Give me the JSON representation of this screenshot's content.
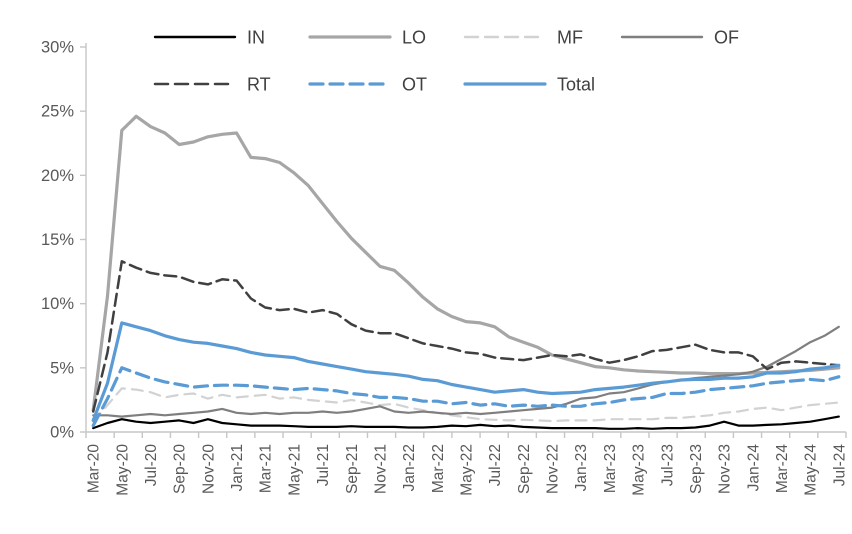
{
  "chart_data": {
    "type": "line",
    "title": "",
    "x_axis": {
      "start": "Mar-20",
      "end": "Jul-24",
      "interval": "monthly",
      "tick_labels": [
        "Mar-20",
        "May-20",
        "Jul-20",
        "Sep-20",
        "Nov-20",
        "Jan-21",
        "Mar-21",
        "May-21",
        "Jul-21",
        "Sep-21",
        "Nov-21",
        "Jan-22",
        "Mar-22",
        "May-22",
        "Jul-22",
        "Sep-22",
        "Nov-22",
        "Jan-23",
        "Mar-23",
        "May-23",
        "Jul-23",
        "Sep-23",
        "Nov-23",
        "Jan-24",
        "Mar-24",
        "May-24",
        "Jul-24"
      ]
    },
    "y_axis": {
      "min": 0,
      "max": 30,
      "tick_step": 5,
      "tick_labels": [
        "0%",
        "5%",
        "10%",
        "15%",
        "20%",
        "25%",
        "30%"
      ],
      "format": "percent"
    },
    "legend": {
      "position": "top",
      "rows": [
        [
          "IN",
          "LO",
          "MF",
          "OF"
        ],
        [
          "RT",
          "OT",
          "Total"
        ]
      ]
    },
    "grid": "off",
    "axis_color": "#C6C6C6",
    "tick_label_color": "#595959",
    "legend_label_color": "#404040",
    "series": [
      {
        "name": "IN",
        "color": "#000000",
        "line_style": "solid",
        "dash_array": null,
        "line_width": 2.2,
        "values": [
          0.3,
          0.7,
          1.0,
          0.8,
          0.7,
          0.8,
          0.9,
          0.7,
          1.0,
          0.7,
          0.6,
          0.5,
          0.5,
          0.5,
          0.45,
          0.4,
          0.4,
          0.4,
          0.45,
          0.4,
          0.4,
          0.4,
          0.35,
          0.35,
          0.4,
          0.5,
          0.45,
          0.55,
          0.45,
          0.5,
          0.4,
          0.35,
          0.3,
          0.3,
          0.3,
          0.3,
          0.25,
          0.25,
          0.3,
          0.25,
          0.3,
          0.3,
          0.35,
          0.5,
          0.8,
          0.5,
          0.5,
          0.55,
          0.6,
          0.7,
          0.8,
          1.0,
          1.2
        ]
      },
      {
        "name": "LO",
        "color": "#A6A6A6",
        "line_style": "solid",
        "dash_array": null,
        "line_width": 3.2,
        "values": [
          1.7,
          10.6,
          23.5,
          24.6,
          23.8,
          23.3,
          22.4,
          22.6,
          23.0,
          23.2,
          23.3,
          21.4,
          21.3,
          21.0,
          20.2,
          19.2,
          17.8,
          16.4,
          15.1,
          14.0,
          12.9,
          12.6,
          11.6,
          10.5,
          9.6,
          9.0,
          8.6,
          8.5,
          8.2,
          7.4,
          7.0,
          6.6,
          6.0,
          5.7,
          5.4,
          5.1,
          5.0,
          4.85,
          4.75,
          4.7,
          4.65,
          4.6,
          4.6,
          4.55,
          4.55,
          4.55,
          4.6,
          4.65,
          4.7,
          4.75,
          4.8,
          4.9,
          5.0
        ]
      },
      {
        "name": "MF",
        "color": "#D2D2D2",
        "line_style": "dashed",
        "dash_array": "11 7",
        "line_width": 2.2,
        "values": [
          0.8,
          2.1,
          3.4,
          3.3,
          3.1,
          2.7,
          2.9,
          3.0,
          2.6,
          2.9,
          2.7,
          2.8,
          2.9,
          2.6,
          2.7,
          2.5,
          2.4,
          2.3,
          2.5,
          2.3,
          2.1,
          2.2,
          1.9,
          1.7,
          1.5,
          1.3,
          1.15,
          1.0,
          0.95,
          0.9,
          0.95,
          0.9,
          0.85,
          0.9,
          0.9,
          0.9,
          1.0,
          1.0,
          1.0,
          1.0,
          1.1,
          1.1,
          1.2,
          1.3,
          1.5,
          1.6,
          1.8,
          1.9,
          1.7,
          1.9,
          2.1,
          2.2,
          2.3
        ]
      },
      {
        "name": "OF",
        "color": "#7F7F7F",
        "line_style": "solid",
        "dash_array": null,
        "line_width": 2.2,
        "values": [
          1.3,
          1.3,
          1.2,
          1.3,
          1.4,
          1.3,
          1.4,
          1.5,
          1.6,
          1.8,
          1.5,
          1.4,
          1.5,
          1.4,
          1.5,
          1.5,
          1.6,
          1.5,
          1.6,
          1.8,
          2.0,
          1.6,
          1.5,
          1.6,
          1.5,
          1.4,
          1.5,
          1.4,
          1.5,
          1.6,
          1.7,
          1.8,
          1.9,
          2.2,
          2.6,
          2.7,
          3.0,
          3.1,
          3.4,
          3.7,
          3.9,
          4.05,
          4.2,
          4.3,
          4.4,
          4.5,
          4.7,
          5.1,
          5.7,
          6.3,
          7.0,
          7.5,
          8.2
        ]
      },
      {
        "name": "RT",
        "color": "#404040",
        "line_style": "dashed",
        "dash_array": "12 6",
        "line_width": 2.5,
        "values": [
          1.6,
          6.2,
          13.3,
          12.8,
          12.4,
          12.2,
          12.1,
          11.7,
          11.5,
          11.9,
          11.8,
          10.4,
          9.7,
          9.5,
          9.6,
          9.3,
          9.5,
          9.2,
          8.4,
          7.9,
          7.7,
          7.7,
          7.3,
          6.9,
          6.7,
          6.5,
          6.2,
          6.1,
          5.8,
          5.7,
          5.6,
          5.8,
          6.0,
          5.9,
          6.05,
          5.7,
          5.4,
          5.6,
          5.9,
          6.3,
          6.4,
          6.6,
          6.8,
          6.4,
          6.2,
          6.2,
          5.9,
          4.9,
          5.4,
          5.5,
          5.4,
          5.3,
          5.2
        ]
      },
      {
        "name": "OT",
        "color": "#5B9BD5",
        "line_style": "dashed",
        "dash_array": "13 7",
        "line_width": 3.2,
        "values": [
          0.5,
          2.6,
          5.0,
          4.6,
          4.2,
          3.9,
          3.7,
          3.5,
          3.6,
          3.65,
          3.65,
          3.6,
          3.5,
          3.4,
          3.3,
          3.4,
          3.3,
          3.2,
          3.0,
          2.9,
          2.7,
          2.7,
          2.6,
          2.4,
          2.4,
          2.2,
          2.3,
          2.1,
          2.2,
          2.0,
          2.1,
          2.0,
          2.1,
          2.0,
          2.0,
          2.2,
          2.3,
          2.5,
          2.6,
          2.7,
          3.0,
          3.0,
          3.1,
          3.3,
          3.4,
          3.5,
          3.6,
          3.8,
          3.9,
          4.0,
          4.1,
          4.0,
          4.3
        ]
      },
      {
        "name": "Total",
        "color": "#5B9BD5",
        "line_style": "solid",
        "dash_array": null,
        "line_width": 3.2,
        "values": [
          0.9,
          3.8,
          8.5,
          8.2,
          7.9,
          7.5,
          7.2,
          7.0,
          6.9,
          6.7,
          6.5,
          6.2,
          6.0,
          5.9,
          5.8,
          5.5,
          5.3,
          5.1,
          4.9,
          4.7,
          4.6,
          4.5,
          4.35,
          4.1,
          4.0,
          3.7,
          3.5,
          3.3,
          3.1,
          3.2,
          3.3,
          3.1,
          3.0,
          3.05,
          3.1,
          3.3,
          3.4,
          3.5,
          3.65,
          3.8,
          3.9,
          4.05,
          4.1,
          4.1,
          4.2,
          4.2,
          4.3,
          4.6,
          4.6,
          4.7,
          4.9,
          5.0,
          5.2
        ]
      }
    ]
  }
}
